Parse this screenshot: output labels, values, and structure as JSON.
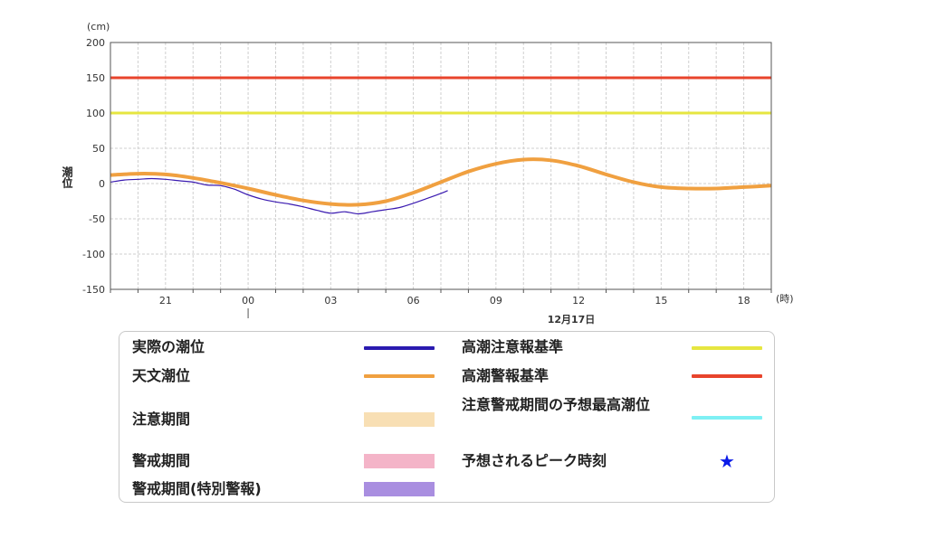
{
  "chart_data": {
    "type": "line",
    "yunit": "(cm)",
    "ylabel": "潮位",
    "xunit": "(時)",
    "ylim": [
      -150,
      200
    ],
    "yticks": [
      "200",
      "150",
      "100",
      "50",
      "0",
      "-50",
      "-100",
      "-150"
    ],
    "xlim_hours": [
      19,
      43
    ],
    "xticks": [
      {
        "hour": 21,
        "label": "21"
      },
      {
        "hour": 24,
        "label": "00"
      },
      {
        "hour": 27,
        "label": "03"
      },
      {
        "hour": 30,
        "label": "06"
      },
      {
        "hour": 33,
        "label": "09"
      },
      {
        "hour": 36,
        "label": "12"
      },
      {
        "hour": 39,
        "label": "15"
      },
      {
        "hour": 42,
        "label": "18"
      }
    ],
    "date_label": "12月17日",
    "grid": true,
    "reference_lines": [
      {
        "name": "高潮警報基準",
        "value": 150,
        "color": "#e8442c"
      },
      {
        "name": "高潮注意報基準",
        "value": 100,
        "color": "#e6e640"
      }
    ],
    "series": [
      {
        "name": "天文潮位",
        "color": "#f0a040",
        "x": [
          19,
          20,
          21,
          22,
          23,
          24,
          25,
          26,
          27,
          28,
          29,
          30,
          31,
          32,
          33,
          34,
          35,
          36,
          37,
          38,
          39,
          40,
          41,
          42,
          43
        ],
        "y": [
          12,
          14,
          13,
          8,
          1,
          -7,
          -16,
          -24,
          -29,
          -30,
          -25,
          -13,
          2,
          17,
          28,
          34,
          33,
          25,
          13,
          2,
          -5,
          -7,
          -7,
          -5,
          -3
        ]
      },
      {
        "name": "実際の潮位",
        "color": "#3a1ab0",
        "x": [
          19,
          19.5,
          20,
          20.5,
          21,
          21.5,
          22,
          22.5,
          23,
          23.5,
          24,
          24.5,
          25,
          25.5,
          26,
          26.5,
          27,
          27.5,
          28,
          28.5,
          29,
          29.5,
          30,
          30.5,
          31,
          31.25
        ],
        "y": [
          2,
          5,
          6,
          7,
          6,
          4,
          2,
          -2,
          -3,
          -8,
          -16,
          -22,
          -26,
          -29,
          -33,
          -38,
          -42,
          -40,
          -43,
          -40,
          -37,
          -34,
          -28,
          -21,
          -14,
          -10
        ]
      }
    ]
  },
  "legend": {
    "items": [
      {
        "label": "実際の潮位",
        "kind": "line",
        "color": "#2a1ab0"
      },
      {
        "label": "天文潮位",
        "kind": "line",
        "color": "#f0a040"
      },
      {
        "label": "注意期間",
        "kind": "fill",
        "color": "#f8dfb4"
      },
      {
        "label": "警戒期間",
        "kind": "fill",
        "color": "#f4b4c8"
      },
      {
        "label": "警戒期間(特別警報)",
        "kind": "fill",
        "color": "#a98ee0"
      },
      {
        "label": "高潮注意報基準",
        "kind": "line",
        "color": "#e6e640"
      },
      {
        "label": "高潮警報基準",
        "kind": "line",
        "color": "#e8442c"
      },
      {
        "label": "注意警戒期間の予想最高潮位",
        "kind": "line",
        "color": "#7ef0f4"
      },
      {
        "label": "予想されるピーク時刻",
        "kind": "star",
        "color": "#0a1ae8",
        "icon": "star-icon"
      }
    ]
  }
}
